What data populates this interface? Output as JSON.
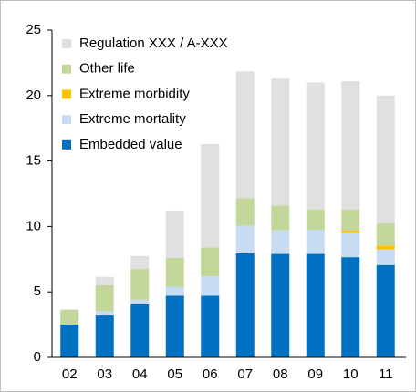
{
  "chart_data": {
    "type": "stacked_bar",
    "categories": [
      "02",
      "03",
      "04",
      "05",
      "06",
      "07",
      "08",
      "09",
      "10",
      "11"
    ],
    "series": [
      {
        "name": "Embedded value",
        "color": "#0070c0",
        "values": [
          2.5,
          3.2,
          4.05,
          4.7,
          4.7,
          7.95,
          7.9,
          7.9,
          7.65,
          7.05
        ]
      },
      {
        "name": "Extreme mortality",
        "color": "#c6dcf2",
        "values": [
          0,
          0.35,
          0.35,
          0.7,
          1.5,
          2.1,
          1.8,
          1.85,
          1.85,
          1.2
        ]
      },
      {
        "name": "Extreme morbidity",
        "color": "#ffc000",
        "values": [
          0,
          0,
          0,
          0,
          0,
          0,
          0,
          0,
          0.2,
          0.3
        ]
      },
      {
        "name": "Other life",
        "color": "#c4d79b",
        "values": [
          1.15,
          1.95,
          2.35,
          2.2,
          2.2,
          2.1,
          1.9,
          1.55,
          1.6,
          1.7
        ]
      },
      {
        "name": "Regulation XXX / A-XXX",
        "color": "#e0e0e0",
        "values": [
          0,
          0.65,
          1.0,
          3.55,
          7.9,
          9.7,
          9.7,
          9.7,
          9.8,
          9.75
        ]
      }
    ],
    "ylim": [
      0,
      25
    ],
    "yticks": [
      0,
      5,
      10,
      15,
      20,
      25
    ],
    "legend": "upper-left"
  }
}
